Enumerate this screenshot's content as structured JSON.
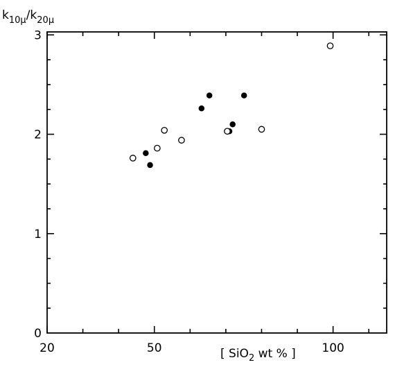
{
  "chart_data": {
    "type": "scatter",
    "title": "",
    "xlabel": {
      "pre": "[ SiO",
      "sub": "2",
      "post": "  wt % ]"
    },
    "ylabel": {
      "k1": "k",
      "s1": "10μ",
      "slash": "/",
      "k2": "k",
      "s2": "20μ"
    },
    "xlim": [
      20,
      115
    ],
    "ylim": [
      0,
      3.03
    ],
    "x_scale": "linear",
    "y_scale": "linear",
    "xticks": [
      20,
      50,
      100
    ],
    "xtick_labels": [
      "20",
      "50",
      "100"
    ],
    "yticks": [
      0,
      1,
      2,
      3
    ],
    "ytick_labels": [
      "0",
      "1",
      "2",
      "3"
    ],
    "grid": false,
    "legend": "none",
    "series": [
      {
        "marker": "filled-circle",
        "points": [
          {
            "x": 47.6,
            "y": 1.81
          },
          {
            "x": 48.8,
            "y": 1.69
          },
          {
            "x": 63.2,
            "y": 2.26
          },
          {
            "x": 65.4,
            "y": 2.39
          },
          {
            "x": 71.0,
            "y": 2.03
          },
          {
            "x": 71.9,
            "y": 2.1
          },
          {
            "x": 75.1,
            "y": 2.39
          }
        ]
      },
      {
        "marker": "open-circle",
        "points": [
          {
            "x": 44.0,
            "y": 1.76
          },
          {
            "x": 50.8,
            "y": 1.86
          },
          {
            "x": 52.8,
            "y": 2.04
          },
          {
            "x": 57.6,
            "y": 1.94
          },
          {
            "x": 70.4,
            "y": 2.03
          },
          {
            "x": 80.0,
            "y": 2.05
          },
          {
            "x": 99.2,
            "y": 2.89
          }
        ]
      }
    ]
  }
}
